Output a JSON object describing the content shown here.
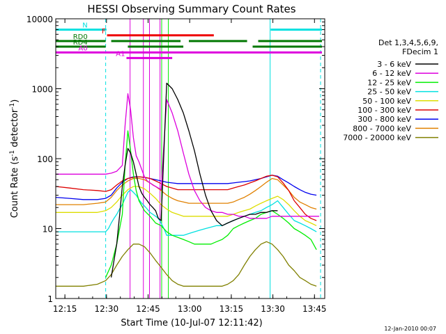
{
  "chart_data": {
    "type": "line",
    "title": "HESSI Observing Summary Count Rates",
    "xlabel": "Start Time (10-Jul-07 12:11:42)",
    "ylabel_main": "Count Rate (s",
    "ylabel_sup1": "-1",
    "ylabel_mid": " detector",
    "ylabel_sup2": "-1",
    "ylabel_end": ")",
    "footer": "12-Jan-2010 00:07",
    "x_unit": "minutes since 12:11:42",
    "xlim": [
      0,
      97
    ],
    "ylim": [
      1,
      10000
    ],
    "y_scale": "log",
    "x_ticks": [
      {
        "v": 3.3,
        "label": "12:15"
      },
      {
        "v": 18.3,
        "label": "12:30"
      },
      {
        "v": 33.3,
        "label": "12:45"
      },
      {
        "v": 48.3,
        "label": "13:00"
      },
      {
        "v": 63.3,
        "label": "13:15"
      },
      {
        "v": 78.3,
        "label": "13:30"
      },
      {
        "v": 93.3,
        "label": "13:45"
      }
    ],
    "y_ticks": [
      {
        "v": 1,
        "label": "1"
      },
      {
        "v": 10,
        "label": "10"
      },
      {
        "v": 100,
        "label": "100"
      },
      {
        "v": 1000,
        "label": "1000"
      },
      {
        "v": 10000,
        "label": "10000"
      }
    ],
    "legend": {
      "header1": "Det 1,3,4,5,6,9,",
      "header2": "FDecim 1",
      "placement": "right"
    },
    "series": [
      {
        "name": "3 - 6 keV",
        "color": "#000000",
        "x": [
          20,
          21,
          22,
          23,
          24,
          25,
          26,
          27,
          28,
          29,
          30,
          31,
          32,
          33,
          34,
          35,
          36,
          37,
          38,
          40,
          42,
          44,
          46,
          48,
          50,
          52,
          54,
          56,
          58,
          60,
          62,
          64,
          66,
          68,
          70,
          72,
          74,
          76,
          78,
          80
        ],
        "y": [
          2,
          3.5,
          6,
          15,
          40,
          80,
          140,
          120,
          90,
          60,
          40,
          32,
          28,
          25,
          22,
          20,
          18,
          14,
          13,
          1200,
          1000,
          700,
          450,
          250,
          130,
          60,
          30,
          18,
          13,
          11,
          12,
          13,
          14,
          15,
          16,
          16,
          17,
          17,
          18,
          18
        ]
      },
      {
        "name": "6 - 12 keV",
        "color": "#dd00dd",
        "x": [
          0,
          5,
          10,
          15,
          18,
          20,
          22,
          24,
          25,
          26,
          27,
          28,
          29,
          30,
          31,
          32,
          33,
          34,
          35,
          36,
          37,
          38,
          40,
          42,
          44,
          46,
          48,
          50,
          52,
          54,
          56,
          58,
          60,
          62,
          64,
          66,
          68,
          70,
          72,
          74,
          76,
          78,
          80,
          85,
          90,
          95
        ],
        "y": [
          60,
          60,
          60,
          60,
          60,
          62,
          66,
          80,
          300,
          850,
          500,
          200,
          110,
          90,
          70,
          55,
          48,
          45,
          42,
          40,
          38,
          36,
          700,
          450,
          250,
          120,
          60,
          35,
          25,
          20,
          18,
          17,
          17,
          16,
          16,
          15,
          15,
          14,
          14,
          14,
          14,
          15,
          15,
          15,
          15,
          15
        ]
      },
      {
        "name": "12 - 25 keV",
        "color": "#00ee00",
        "x": [
          18,
          20,
          22,
          24,
          25,
          26,
          27,
          28,
          29,
          30,
          32,
          34,
          36,
          38,
          40,
          42,
          44,
          46,
          48,
          50,
          52,
          54,
          56,
          58,
          60,
          62,
          64,
          66,
          68,
          70,
          72,
          74,
          76,
          78,
          80,
          82,
          84,
          86,
          88,
          90,
          92,
          94
        ],
        "y": [
          2,
          3,
          6,
          16,
          80,
          250,
          130,
          60,
          35,
          25,
          18,
          15,
          12,
          11,
          9,
          8,
          7.5,
          7,
          6.5,
          6,
          6,
          6,
          6,
          6.5,
          7,
          8,
          10,
          11,
          12,
          13,
          14,
          16,
          17,
          18,
          16,
          14,
          12,
          10,
          9,
          8,
          7,
          5
        ]
      },
      {
        "name": "25 - 50 keV",
        "color": "#00e0e0",
        "x": [
          0,
          5,
          10,
          15,
          17,
          18,
          19,
          20,
          21,
          22,
          23,
          24,
          25,
          26,
          27,
          28,
          29,
          30,
          31,
          32,
          33,
          34,
          35,
          36,
          37,
          38,
          39,
          40,
          42,
          44,
          46,
          48,
          50,
          52,
          54,
          56,
          58,
          60,
          62,
          64,
          66,
          68,
          70,
          72,
          74,
          76,
          78,
          80,
          82,
          84,
          86,
          88,
          90,
          92,
          94
        ],
        "y": [
          9,
          9,
          9,
          9,
          9,
          9,
          10,
          12,
          14,
          16,
          19,
          22,
          27,
          33,
          36,
          33,
          30,
          26,
          23,
          21,
          19,
          17,
          16,
          15,
          14,
          12,
          10,
          8,
          8,
          8,
          8,
          8.5,
          9,
          9.5,
          10,
          10.5,
          11,
          11,
          12,
          13,
          14,
          15,
          16,
          17,
          18,
          20,
          22,
          25,
          20,
          16,
          13,
          12,
          11,
          10,
          9
        ]
      },
      {
        "name": "50 - 100 keV",
        "color": "#dddd00",
        "x": [
          0,
          5,
          10,
          15,
          18,
          20,
          22,
          24,
          26,
          28,
          30,
          32,
          34,
          36,
          38,
          40,
          42,
          44,
          46,
          48,
          50,
          52,
          54,
          56,
          58,
          60,
          62,
          64,
          66,
          68,
          70,
          72,
          74,
          76,
          78,
          80,
          82,
          84,
          86,
          88,
          90,
          92,
          94
        ],
        "y": [
          17,
          17,
          17,
          17,
          18,
          20,
          24,
          30,
          36,
          40,
          40,
          37,
          32,
          27,
          22,
          19,
          17,
          16,
          15,
          15,
          15,
          15,
          15,
          15,
          15,
          15,
          15,
          16,
          17,
          18,
          19,
          21,
          23,
          25,
          27,
          29,
          26,
          22,
          18,
          15,
          13,
          12,
          11
        ]
      },
      {
        "name": "100 - 300 keV",
        "color": "#dd0000",
        "x": [
          0,
          5,
          10,
          15,
          18,
          20,
          22,
          24,
          26,
          28,
          30,
          32,
          34,
          36,
          38,
          40,
          42,
          44,
          46,
          48,
          50,
          52,
          54,
          56,
          58,
          60,
          62,
          64,
          66,
          68,
          70,
          72,
          74,
          76,
          78,
          80,
          82,
          84,
          86,
          88,
          90,
          92,
          94
        ],
        "y": [
          40,
          38,
          36,
          35,
          34,
          36,
          42,
          48,
          52,
          54,
          55,
          54,
          52,
          48,
          44,
          40,
          38,
          36,
          36,
          36,
          36,
          36,
          36,
          36,
          36,
          36,
          36,
          38,
          40,
          42,
          45,
          48,
          52,
          56,
          58,
          55,
          45,
          35,
          25,
          20,
          16,
          14,
          13
        ]
      },
      {
        "name": "300 - 800 keV",
        "color": "#0000ee",
        "x": [
          0,
          5,
          10,
          15,
          18,
          20,
          22,
          24,
          26,
          28,
          30,
          32,
          34,
          36,
          38,
          40,
          42,
          44,
          46,
          48,
          50,
          52,
          54,
          56,
          58,
          60,
          62,
          64,
          66,
          68,
          70,
          72,
          74,
          76,
          78,
          80,
          82,
          84,
          86,
          88,
          90,
          92,
          94
        ],
        "y": [
          28,
          27,
          26,
          26,
          27,
          30,
          38,
          46,
          52,
          55,
          55,
          54,
          52,
          50,
          48,
          46,
          45,
          44,
          44,
          44,
          44,
          44,
          44,
          44,
          44,
          44,
          44,
          45,
          46,
          47,
          48,
          50,
          52,
          55,
          58,
          56,
          50,
          45,
          40,
          36,
          33,
          31,
          30
        ]
      },
      {
        "name": "800 - 7000 keV",
        "color": "#e08000",
        "x": [
          0,
          5,
          10,
          15,
          18,
          20,
          22,
          24,
          26,
          28,
          30,
          32,
          34,
          36,
          38,
          40,
          42,
          44,
          46,
          48,
          50,
          52,
          54,
          56,
          58,
          60,
          62,
          64,
          66,
          68,
          70,
          72,
          74,
          76,
          78,
          80,
          82,
          84,
          86,
          88,
          90,
          92,
          94
        ],
        "y": [
          22,
          22,
          22,
          23,
          24,
          28,
          35,
          42,
          48,
          52,
          52,
          50,
          45,
          40,
          35,
          30,
          27,
          25,
          24,
          23,
          23,
          23,
          23,
          23,
          23,
          23,
          23,
          24,
          26,
          28,
          31,
          35,
          40,
          46,
          52,
          50,
          42,
          35,
          28,
          24,
          22,
          20,
          19
        ]
      },
      {
        "name": "7000 - 20000 keV",
        "color": "#808000",
        "x": [
          0,
          5,
          10,
          15,
          18,
          20,
          22,
          24,
          26,
          28,
          30,
          32,
          34,
          36,
          38,
          40,
          42,
          44,
          46,
          48,
          50,
          52,
          54,
          56,
          58,
          60,
          62,
          64,
          66,
          68,
          70,
          72,
          74,
          76,
          78,
          80,
          82,
          84,
          86,
          88,
          90,
          92,
          94
        ],
        "y": [
          1.5,
          1.5,
          1.5,
          1.6,
          1.8,
          2.2,
          3,
          4,
          5,
          6,
          6,
          5.5,
          4.5,
          3.5,
          2.8,
          2.2,
          1.8,
          1.6,
          1.5,
          1.5,
          1.5,
          1.5,
          1.5,
          1.5,
          1.5,
          1.5,
          1.6,
          1.8,
          2.2,
          3,
          4,
          5,
          6,
          6.5,
          6,
          5,
          4,
          3,
          2.5,
          2,
          1.8,
          1.6,
          1.5
        ]
      }
    ],
    "flag_bars": [
      {
        "label": "N",
        "color": "#00e0e0",
        "y": 7000,
        "segments": [
          [
            0,
            18.3
          ],
          [
            77.5,
            96
          ]
        ]
      },
      {
        "label": "F",
        "color": "#ee0000",
        "y": 5800,
        "segments": [
          [
            18.5,
            57
          ]
        ]
      },
      {
        "label": "RD0",
        "color": "#007700",
        "y": 4800,
        "segments": [
          [
            0,
            18
          ],
          [
            20,
            45
          ],
          [
            48,
            69
          ],
          [
            73,
            96
          ]
        ]
      },
      {
        "label": "RD4",
        "color": "#007700",
        "y": 4000,
        "segments": [
          [
            0,
            18
          ],
          [
            26,
            46
          ],
          [
            71,
            96
          ]
        ]
      },
      {
        "label": "A0",
        "color": "#dd00dd",
        "y": 3300,
        "segments": [
          [
            0,
            96
          ]
        ]
      },
      {
        "label": "A1",
        "color": "#dd00dd",
        "y": 2750,
        "segments": [
          [
            25.5,
            42
          ]
        ]
      }
    ],
    "vlines": [
      {
        "x": 0,
        "color": "#00e0e0",
        "dash": true
      },
      {
        "x": 18,
        "color": "#00e0e0",
        "dash": true
      },
      {
        "x": 77.3,
        "color": "#00e0e0",
        "dash": false
      },
      {
        "x": 95.5,
        "color": "#00e0e0",
        "dash": true
      },
      {
        "x": 26.8,
        "color": "#dd00dd",
        "dash": false
      },
      {
        "x": 31.6,
        "color": "#dd00dd",
        "dash": false
      },
      {
        "x": 33.8,
        "color": "#dd00dd",
        "dash": false
      },
      {
        "x": 37.6,
        "color": "#dd00dd",
        "dash": false
      },
      {
        "x": 38.2,
        "color": "#00ee00",
        "dash": false
      },
      {
        "x": 40.6,
        "color": "#00ee00",
        "dash": false
      }
    ]
  }
}
